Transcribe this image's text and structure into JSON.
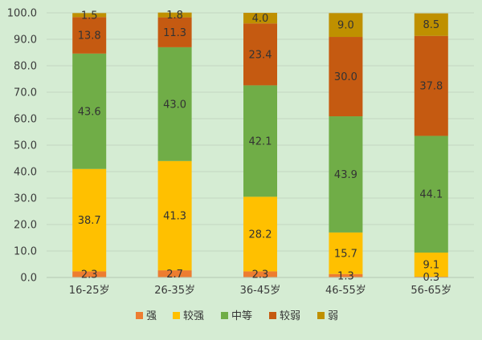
{
  "chart_data": {
    "type": "bar",
    "stacked": true,
    "title": "",
    "xlabel": "",
    "ylabel": "",
    "ylim": [
      0,
      100
    ],
    "yticks": [
      "0.0",
      "10.0",
      "20.0",
      "30.0",
      "40.0",
      "50.0",
      "60.0",
      "70.0",
      "80.0",
      "90.0",
      "100.0"
    ],
    "categories": [
      "16-25岁",
      "26-35岁",
      "36-45岁",
      "46-55岁",
      "56-65岁"
    ],
    "grid": true,
    "legend_position": "bottom",
    "series": [
      {
        "name": "强",
        "color": "#ed7d31",
        "values": [
          2.3,
          2.7,
          2.3,
          1.3,
          0.3
        ]
      },
      {
        "name": "较强",
        "color": "#ffc000",
        "values": [
          38.7,
          41.3,
          28.2,
          15.7,
          9.1
        ]
      },
      {
        "name": "中等",
        "color": "#70ad47",
        "values": [
          43.6,
          43.0,
          42.1,
          43.9,
          44.1
        ]
      },
      {
        "name": "较弱",
        "color": "#c55a11",
        "values": [
          13.8,
          11.3,
          23.4,
          30.0,
          37.8
        ]
      },
      {
        "name": "弱",
        "color": "#bf9000",
        "values": [
          1.5,
          1.8,
          4.0,
          9.0,
          8.5
        ]
      }
    ]
  }
}
